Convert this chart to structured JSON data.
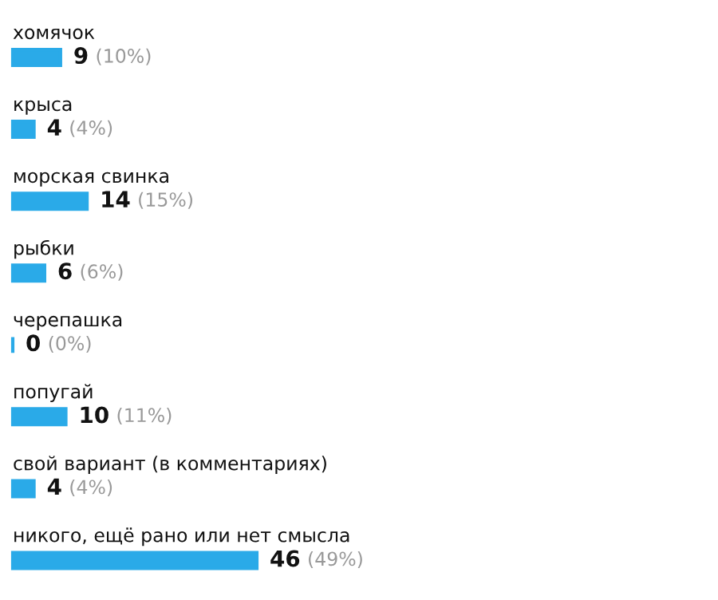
{
  "chart_data": {
    "type": "bar",
    "orientation": "horizontal",
    "categories": [
      "хомячок",
      "крыса",
      "морская свинка",
      "рыбки",
      "черепашка",
      "попугай",
      "свой вариант (в комментариях)",
      "никого, ещё рано или нет смысла"
    ],
    "values": [
      9,
      4,
      14,
      6,
      0,
      10,
      4,
      46
    ],
    "value_labels": [
      "9 (10%)",
      "4 (4%)",
      "14 (15%)",
      "6 (6%)",
      "0 (0%)",
      "10 (11%)",
      "4 (4%)",
      "46 (49%)"
    ],
    "color": "#2aaae8"
  }
}
